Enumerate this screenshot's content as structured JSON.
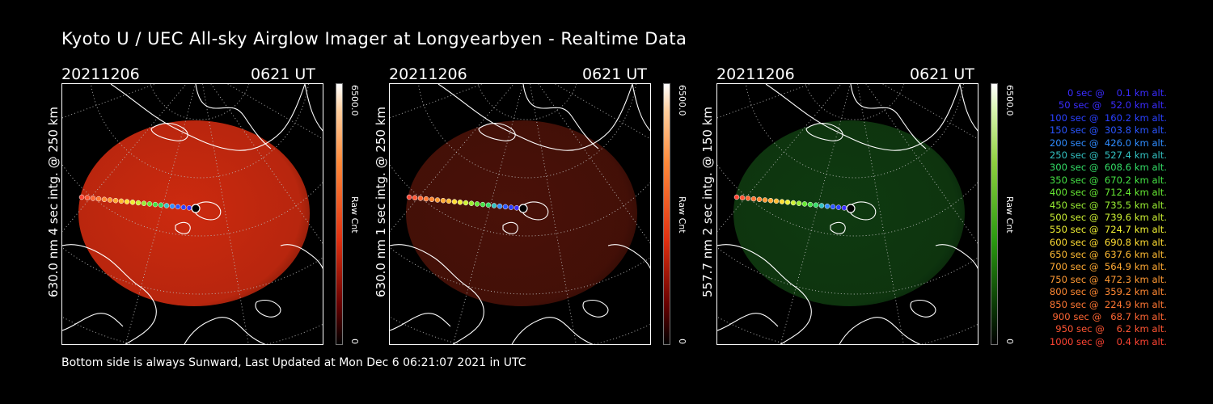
{
  "title": "Kyoto U / UEC All-sky Airglow Imager at Longyearbyen - Realtime Data",
  "panels": [
    {
      "date": "20211206",
      "time": "0621  UT",
      "ylabel": "630.0 nm 4 sec intg. @ 250 km",
      "colorbar_max": "6500.0",
      "colorbar_unit": "Raw Cnt",
      "colorbar_min": "0",
      "color": "#ff2a10",
      "accent": "#cc2a0f",
      "intensity": 1.0
    },
    {
      "date": "20211206",
      "time": "0621  UT",
      "ylabel": "630.0 nm 1 sec intg. @ 250 km",
      "colorbar_max": "6500.0",
      "colorbar_unit": "Raw Cnt",
      "colorbar_min": "0",
      "color": "#ff2a10",
      "accent": "#4a1108",
      "intensity": 0.3
    },
    {
      "date": "20211206",
      "time": "0621  UT",
      "ylabel": "557.7 nm 2 sec intg. @ 150 km",
      "colorbar_max": "6500.0",
      "colorbar_unit": "Raw Cnt",
      "colorbar_min": "0",
      "color": "#28c828",
      "accent": "#0f3a10",
      "intensity": 0.3
    }
  ],
  "footer": "Bottom side is always Sunward, Last Updated at Mon Dec  6 06:21:07 2021 in UTC",
  "trajectory_legend": [
    {
      "text": "0 sec @    0.1 km alt.",
      "color": "#3a2cff"
    },
    {
      "text": "50 sec @   52.0 km alt.",
      "color": "#3a2cff"
    },
    {
      "text": "100 sec @  160.2 km alt.",
      "color": "#2a40ff"
    },
    {
      "text": "150 sec @  303.8 km alt.",
      "color": "#2a55ff"
    },
    {
      "text": "200 sec @  426.0 km alt.",
      "color": "#2f8cff"
    },
    {
      "text": "250 sec @  527.4 km alt.",
      "color": "#33c2c2"
    },
    {
      "text": "300 sec @  608.6 km alt.",
      "color": "#33dd66"
    },
    {
      "text": "350 sec @  670.2 km alt.",
      "color": "#44e044"
    },
    {
      "text": "400 sec @  712.4 km alt.",
      "color": "#66e833"
    },
    {
      "text": "450 sec @  735.5 km alt.",
      "color": "#99ee33"
    },
    {
      "text": "500 sec @  739.6 km alt.",
      "color": "#ccf033"
    },
    {
      "text": "550 sec @  724.7 km alt.",
      "color": "#f0f033"
    },
    {
      "text": "600 sec @  690.8 km alt.",
      "color": "#ffdd33"
    },
    {
      "text": "650 sec @  637.6 km alt.",
      "color": "#ffbb33"
    },
    {
      "text": "700 sec @  564.9 km alt.",
      "color": "#ffaa33"
    },
    {
      "text": "750 sec @  472.3 km alt.",
      "color": "#ff9933"
    },
    {
      "text": "800 sec @  359.2 km alt.",
      "color": "#ff8833"
    },
    {
      "text": "850 sec @  224.9 km alt.",
      "color": "#ff7733"
    },
    {
      "text": "900 sec @   68.7 km alt.",
      "color": "#ff6633"
    },
    {
      "text": "950 sec @    6.2 km alt.",
      "color": "#ff5533"
    },
    {
      "text": "1000 sec @    0.4 km alt.",
      "color": "#ff4433"
    }
  ]
}
